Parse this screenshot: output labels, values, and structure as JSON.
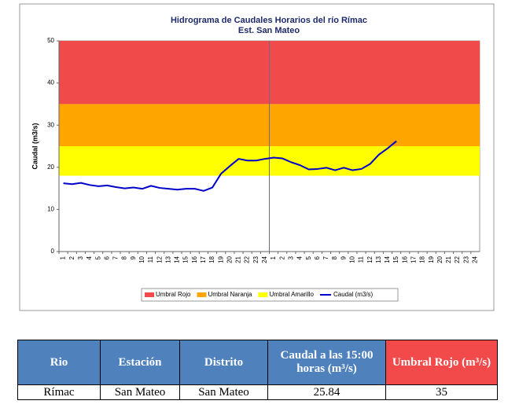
{
  "chart_data": {
    "type": "line",
    "title": "Hidrograma de Caudales Horarios del río Rímac",
    "subtitle": "Est. San Mateo",
    "y_label": "Caudal  (m3/s)",
    "categories": [
      "1",
      "2",
      "3",
      "4",
      "5",
      "6",
      "7",
      "8",
      "9",
      "10",
      "11",
      "12",
      "13",
      "14",
      "15",
      "16",
      "17",
      "18",
      "19",
      "20",
      "21",
      "22",
      "23",
      "24",
      "1",
      "2",
      "3",
      "4",
      "5",
      "6",
      "7",
      "8",
      "9",
      "10",
      "11",
      "12",
      "13",
      "14",
      "15",
      "16",
      "17",
      "18",
      "19",
      "20",
      "21",
      "22",
      "23",
      "24"
    ],
    "bands": [
      {
        "name": "Umbral Rojo",
        "color": "#f04a4a",
        "range": [
          35,
          50
        ]
      },
      {
        "name": "Umbral Naranja",
        "color": "#ffa500",
        "range": [
          25,
          35
        ]
      },
      {
        "name": "Umbral Amarillo",
        "color": "#ffff00",
        "range": [
          18,
          25
        ]
      }
    ],
    "series": [
      {
        "name": "Caudal (m3/s)",
        "color": "#0000cc",
        "values": [
          16.2,
          16.0,
          16.3,
          15.8,
          15.5,
          15.7,
          15.3,
          15.0,
          15.2,
          14.9,
          15.6,
          15.1,
          14.9,
          14.7,
          14.9,
          14.9,
          14.4,
          15.2,
          18.5,
          20.3,
          22.0,
          21.6,
          21.6,
          22.0,
          22.3,
          22.1,
          21.2,
          20.5,
          19.5,
          19.6,
          19.9,
          19.3,
          19.9,
          19.3,
          19.6,
          20.8,
          23.0,
          24.5,
          26.2,
          null,
          null,
          null,
          null,
          null,
          null,
          null,
          null,
          null
        ]
      }
    ],
    "ylim": [
      0,
      50
    ],
    "yticks": [
      0,
      10,
      20,
      30,
      40,
      50
    ]
  },
  "table": {
    "headers": [
      "Rio",
      "Estación",
      "Distrito",
      "Caudal a las 15:00 horas (m³/s)",
      "Umbral Rojo (m³/s)"
    ],
    "rows": [
      [
        "Rímac",
        "San Mateo",
        "San Mateo",
        "25.84",
        "35"
      ]
    ]
  }
}
